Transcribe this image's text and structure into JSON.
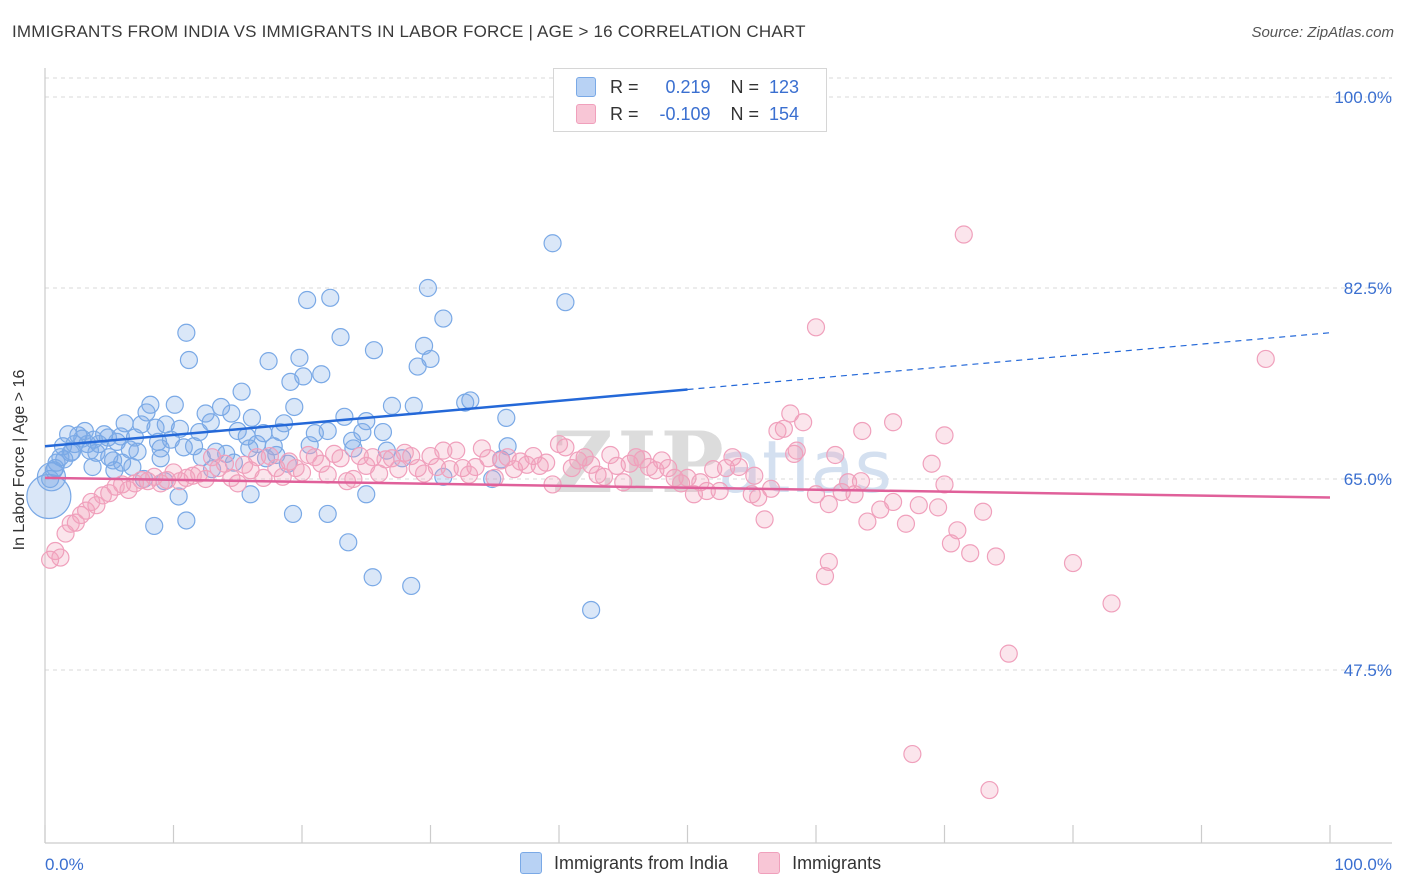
{
  "header": {
    "title": "IMMIGRANTS FROM INDIA VS IMMIGRANTS IN LABOR FORCE | AGE > 16 CORRELATION CHART",
    "source": "Source: ZipAtlas.com"
  },
  "legend": {
    "r_label": "R =",
    "n_label": "N =",
    "series1": {
      "r_value": "0.219",
      "n_value": "123"
    },
    "series2": {
      "r_value": "-0.109",
      "n_value": "154"
    }
  },
  "chart_data": {
    "type": "scatter",
    "title": "IMMIGRANTS FROM INDIA VS IMMIGRANTS IN LABOR FORCE | AGE > 16 CORRELATION CHART",
    "xlabel": "",
    "ylabel": "In Labor Force | Age > 16",
    "xlim": [
      0,
      100
    ],
    "ylim": [
      30,
      100
    ],
    "x_tick_labels": [
      "0.0%",
      "100.0%"
    ],
    "y_ticks": [
      47.5,
      65.0,
      82.5,
      100.0
    ],
    "y_tick_labels": [
      "47.5%",
      "65.0%",
      "82.5%",
      "100.0%"
    ],
    "grid": true,
    "legend_position": "top-center",
    "watermark": "ZIPatlas",
    "series": [
      {
        "name": "Immigrants from India",
        "color": "#7aa9e6",
        "trend_color": "#2468d8",
        "trend": {
          "x0": 0,
          "y0": 68.0,
          "x1": 50,
          "y1": 73.2,
          "dashed_to_x": 100,
          "dashed_to_y": 78.4
        },
        "points": [
          [
            0.3,
            63.4
          ],
          [
            0.5,
            65.2
          ],
          [
            0.7,
            65.8
          ],
          [
            0.8,
            66.0
          ],
          [
            1.2,
            67.0
          ],
          [
            1.4,
            68.0
          ],
          [
            1.8,
            69.1
          ],
          [
            2.0,
            67.4
          ],
          [
            2.3,
            68.2
          ],
          [
            2.6,
            69.0
          ],
          [
            2.9,
            68.7
          ],
          [
            3.1,
            69.4
          ],
          [
            3.5,
            67.6
          ],
          [
            3.8,
            68.6
          ],
          [
            4.2,
            68.2
          ],
          [
            4.6,
            69.1
          ],
          [
            5.0,
            67.0
          ],
          [
            5.3,
            66.7
          ],
          [
            5.6,
            68.4
          ],
          [
            5.9,
            68.9
          ],
          [
            6.2,
            70.1
          ],
          [
            6.6,
            67.7
          ],
          [
            7.0,
            68.8
          ],
          [
            7.5,
            70.0
          ],
          [
            7.9,
            71.1
          ],
          [
            8.2,
            71.8
          ],
          [
            8.6,
            69.7
          ],
          [
            9.0,
            67.8
          ],
          [
            9.4,
            70.0
          ],
          [
            9.8,
            68.6
          ],
          [
            10.1,
            71.8
          ],
          [
            10.5,
            69.6
          ],
          [
            11.0,
            78.4
          ],
          [
            11.2,
            75.9
          ],
          [
            11.6,
            68.0
          ],
          [
            12.0,
            69.3
          ],
          [
            12.5,
            71.0
          ],
          [
            12.9,
            70.2
          ],
          [
            13.3,
            67.5
          ],
          [
            13.7,
            71.6
          ],
          [
            14.1,
            67.3
          ],
          [
            14.5,
            71.0
          ],
          [
            15.0,
            69.4
          ],
          [
            15.3,
            73.0
          ],
          [
            15.7,
            68.9
          ],
          [
            16.1,
            70.6
          ],
          [
            16.5,
            68.2
          ],
          [
            17.0,
            69.2
          ],
          [
            17.4,
            75.8
          ],
          [
            17.8,
            68.0
          ],
          [
            18.3,
            69.3
          ],
          [
            18.6,
            70.1
          ],
          [
            19.1,
            73.9
          ],
          [
            19.4,
            71.6
          ],
          [
            19.8,
            76.1
          ],
          [
            20.1,
            74.4
          ],
          [
            21.0,
            69.2
          ],
          [
            21.5,
            74.6
          ],
          [
            22.0,
            69.4
          ],
          [
            23.3,
            70.7
          ],
          [
            23.9,
            68.5
          ],
          [
            24.7,
            69.3
          ],
          [
            25.0,
            70.3
          ],
          [
            25.6,
            76.8
          ],
          [
            26.3,
            69.3
          ],
          [
            27.0,
            71.7
          ],
          [
            28.7,
            71.7
          ],
          [
            29.0,
            75.3
          ],
          [
            29.5,
            77.2
          ],
          [
            30.0,
            76.0
          ],
          [
            31.0,
            79.7
          ],
          [
            32.7,
            72.0
          ],
          [
            33.1,
            72.2
          ],
          [
            34.8,
            65.0
          ],
          [
            35.9,
            70.6
          ],
          [
            36.0,
            68.0
          ],
          [
            39.5,
            86.6
          ],
          [
            40.5,
            81.2
          ],
          [
            20.4,
            81.4
          ],
          [
            22.2,
            81.6
          ],
          [
            29.8,
            82.5
          ],
          [
            23.0,
            78.0
          ],
          [
            8.5,
            60.7
          ],
          [
            9.0,
            66.9
          ],
          [
            11.0,
            61.2
          ],
          [
            16.0,
            63.6
          ],
          [
            22.0,
            61.8
          ],
          [
            19.3,
            61.8
          ],
          [
            23.6,
            59.2
          ],
          [
            25.0,
            63.6
          ],
          [
            25.5,
            56.0
          ],
          [
            28.5,
            55.2
          ],
          [
            42.5,
            53.0
          ],
          [
            31.0,
            65.2
          ],
          [
            35.5,
            66.8
          ],
          [
            0.4,
            65.0
          ],
          [
            0.9,
            66.5
          ],
          [
            1.5,
            66.8
          ],
          [
            2.1,
            67.5
          ],
          [
            3.3,
            68.2
          ],
          [
            4.0,
            67.4
          ],
          [
            4.9,
            68.8
          ],
          [
            6.8,
            66.1
          ],
          [
            7.2,
            67.5
          ],
          [
            8.8,
            68.4
          ],
          [
            10.8,
            67.9
          ],
          [
            12.2,
            67.0
          ],
          [
            13.0,
            65.9
          ],
          [
            14.7,
            66.5
          ],
          [
            15.9,
            67.8
          ],
          [
            17.2,
            66.9
          ],
          [
            18.0,
            67.2
          ],
          [
            18.9,
            66.4
          ],
          [
            20.6,
            68.1
          ],
          [
            24.0,
            67.8
          ],
          [
            26.6,
            67.6
          ],
          [
            27.8,
            66.9
          ],
          [
            9.3,
            64.8
          ],
          [
            10.4,
            63.4
          ],
          [
            6.0,
            66.5
          ],
          [
            3.7,
            66.1
          ],
          [
            5.4,
            65.8
          ],
          [
            7.7,
            65.0
          ]
        ]
      },
      {
        "name": "Immigrants",
        "color": "#f0a0bc",
        "trend_color": "#e0609a",
        "trend": {
          "x0": 0,
          "y0": 65.1,
          "x1": 100,
          "y1": 63.3
        },
        "points": [
          [
            0.4,
            57.6
          ],
          [
            0.8,
            58.4
          ],
          [
            1.2,
            57.8
          ],
          [
            1.6,
            60.0
          ],
          [
            2.0,
            60.9
          ],
          [
            2.4,
            61.0
          ],
          [
            2.8,
            61.7
          ],
          [
            3.2,
            62.1
          ],
          [
            3.6,
            62.9
          ],
          [
            4.0,
            62.6
          ],
          [
            4.5,
            63.5
          ],
          [
            5.0,
            63.7
          ],
          [
            5.5,
            64.3
          ],
          [
            6.0,
            64.5
          ],
          [
            6.5,
            64.0
          ],
          [
            7.0,
            64.6
          ],
          [
            7.5,
            64.9
          ],
          [
            8.0,
            64.8
          ],
          [
            8.5,
            65.2
          ],
          [
            9.0,
            64.6
          ],
          [
            9.5,
            64.9
          ],
          [
            10.0,
            65.6
          ],
          [
            10.5,
            64.8
          ],
          [
            11.0,
            65.1
          ],
          [
            11.5,
            65.3
          ],
          [
            12.0,
            65.5
          ],
          [
            12.5,
            65.0
          ],
          [
            13.0,
            67.0
          ],
          [
            13.5,
            66.0
          ],
          [
            14.0,
            66.4
          ],
          [
            14.5,
            65.1
          ],
          [
            15.0,
            64.6
          ],
          [
            15.5,
            66.3
          ],
          [
            16.0,
            65.8
          ],
          [
            16.5,
            67.0
          ],
          [
            17.0,
            65.1
          ],
          [
            17.5,
            67.1
          ],
          [
            18.0,
            66.0
          ],
          [
            18.5,
            65.2
          ],
          [
            19.0,
            66.6
          ],
          [
            19.5,
            66.0
          ],
          [
            20.0,
            65.6
          ],
          [
            20.5,
            67.2
          ],
          [
            21.0,
            67.0
          ],
          [
            21.5,
            66.4
          ],
          [
            22.0,
            65.4
          ],
          [
            22.5,
            67.3
          ],
          [
            23.0,
            66.9
          ],
          [
            23.5,
            64.8
          ],
          [
            24.0,
            65.0
          ],
          [
            24.5,
            67.1
          ],
          [
            25.0,
            66.2
          ],
          [
            25.5,
            67.0
          ],
          [
            26.0,
            65.5
          ],
          [
            26.5,
            66.8
          ],
          [
            27.0,
            66.9
          ],
          [
            27.5,
            65.9
          ],
          [
            28.0,
            67.4
          ],
          [
            28.5,
            67.1
          ],
          [
            29.0,
            66.0
          ],
          [
            29.5,
            65.5
          ],
          [
            30.0,
            67.1
          ],
          [
            30.5,
            66.1
          ],
          [
            31.0,
            67.6
          ],
          [
            31.5,
            65.9
          ],
          [
            32.0,
            67.6
          ],
          [
            32.5,
            66.0
          ],
          [
            33.0,
            65.4
          ],
          [
            33.5,
            66.1
          ],
          [
            34.0,
            67.8
          ],
          [
            34.5,
            66.9
          ],
          [
            35.0,
            65.1
          ],
          [
            35.5,
            66.7
          ],
          [
            36.0,
            67.0
          ],
          [
            36.5,
            65.9
          ],
          [
            37.0,
            66.6
          ],
          [
            37.5,
            66.3
          ],
          [
            38.0,
            67.1
          ],
          [
            38.5,
            66.2
          ],
          [
            39.0,
            66.5
          ],
          [
            39.5,
            64.5
          ],
          [
            40.0,
            68.2
          ],
          [
            40.5,
            67.9
          ],
          [
            41.0,
            66.0
          ],
          [
            41.5,
            66.7
          ],
          [
            42.0,
            67.0
          ],
          [
            42.5,
            66.3
          ],
          [
            43.0,
            65.4
          ],
          [
            43.5,
            65.2
          ],
          [
            44.0,
            67.2
          ],
          [
            44.5,
            66.2
          ],
          [
            45.0,
            64.7
          ],
          [
            45.5,
            66.4
          ],
          [
            46.0,
            67.0
          ],
          [
            46.5,
            66.8
          ],
          [
            47.0,
            66.1
          ],
          [
            47.5,
            65.8
          ],
          [
            48.0,
            66.7
          ],
          [
            48.5,
            66.0
          ],
          [
            49.0,
            65.1
          ],
          [
            49.5,
            64.6
          ],
          [
            50.0,
            65.1
          ],
          [
            50.5,
            63.6
          ],
          [
            51.0,
            64.7
          ],
          [
            51.5,
            63.9
          ],
          [
            52.0,
            65.9
          ],
          [
            52.5,
            63.9
          ],
          [
            53.0,
            66.0
          ],
          [
            53.5,
            67.0
          ],
          [
            54.0,
            66.1
          ],
          [
            55.0,
            63.6
          ],
          [
            55.5,
            63.3
          ],
          [
            56.0,
            61.3
          ],
          [
            56.5,
            64.1
          ],
          [
            57.0,
            69.4
          ],
          [
            57.5,
            69.6
          ],
          [
            58.0,
            71.0
          ],
          [
            58.5,
            67.6
          ],
          [
            59.0,
            70.2
          ],
          [
            60.0,
            63.6
          ],
          [
            61.0,
            62.7
          ],
          [
            61.5,
            67.2
          ],
          [
            62.0,
            63.8
          ],
          [
            63.0,
            63.6
          ],
          [
            63.5,
            64.8
          ],
          [
            64.0,
            61.1
          ],
          [
            65.0,
            62.2
          ],
          [
            66.0,
            62.9
          ],
          [
            67.0,
            60.9
          ],
          [
            68.0,
            62.6
          ],
          [
            69.0,
            66.4
          ],
          [
            69.5,
            62.4
          ],
          [
            70.0,
            64.5
          ],
          [
            70.5,
            59.1
          ],
          [
            71.0,
            60.3
          ],
          [
            72.0,
            58.2
          ],
          [
            73.0,
            62.0
          ],
          [
            74.0,
            57.9
          ],
          [
            75.0,
            49.0
          ],
          [
            60.7,
            56.1
          ],
          [
            61.0,
            57.4
          ],
          [
            71.5,
            87.4
          ],
          [
            60.0,
            78.9
          ],
          [
            67.5,
            39.8
          ],
          [
            73.5,
            36.5
          ],
          [
            80.0,
            57.3
          ],
          [
            83.0,
            53.6
          ],
          [
            95.0,
            76.0
          ],
          [
            70.0,
            69.0
          ],
          [
            66.0,
            70.2
          ],
          [
            63.6,
            69.4
          ],
          [
            58.3,
            67.3
          ],
          [
            55.2,
            65.3
          ],
          [
            62.5,
            64.7
          ]
        ]
      }
    ]
  },
  "bottom_legend": {
    "items": [
      "Immigrants from India",
      "Immigrants"
    ]
  }
}
